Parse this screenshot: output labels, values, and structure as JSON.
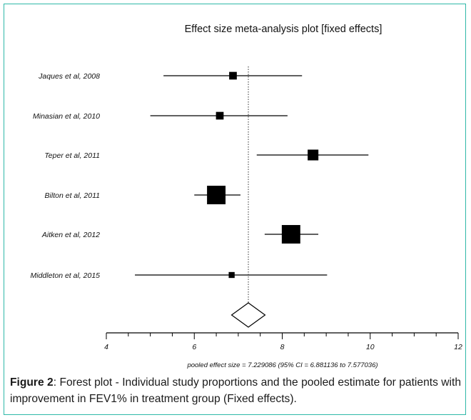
{
  "figure": {
    "caption_label": "Figure 2",
    "caption_text": ": Forest plot - Individual study proportions and the pooled estimate for patients with improvement in FEV1% in treatment group (Fixed effects)."
  },
  "chart_data": {
    "type": "forest",
    "title": "Effect size meta-analysis plot [fixed effects]",
    "xlim": [
      4,
      12
    ],
    "x_ticks": [
      "4",
      "6",
      "8",
      "10",
      "12"
    ],
    "studies": [
      {
        "label": "Jaques et al, 2008",
        "estimate": 6.88,
        "ci": [
          5.3,
          8.45
        ],
        "weight": 1
      },
      {
        "label": "Minasian et al, 2010",
        "estimate": 6.58,
        "ci": [
          5.0,
          8.12
        ],
        "weight": 1
      },
      {
        "label": "Teper et al, 2011",
        "estimate": 8.7,
        "ci": [
          7.42,
          9.96
        ],
        "weight": 2
      },
      {
        "label": "Bilton et al, 2011",
        "estimate": 6.5,
        "ci": [
          6.0,
          7.05
        ],
        "weight": 6
      },
      {
        "label": "Aitken et al, 2012",
        "estimate": 8.2,
        "ci": [
          7.6,
          8.82
        ],
        "weight": 6
      },
      {
        "label": "Middleton et al, 2015",
        "estimate": 6.85,
        "ci": [
          4.65,
          9.02
        ],
        "weight": 0.6
      }
    ],
    "pooled": {
      "estimate": 7.229086,
      "ci": [
        6.881136,
        7.577036
      ]
    },
    "pooled_label": "pooled effect size = 7.229086  (95% CI = 6.881136 to 7.577036)"
  }
}
